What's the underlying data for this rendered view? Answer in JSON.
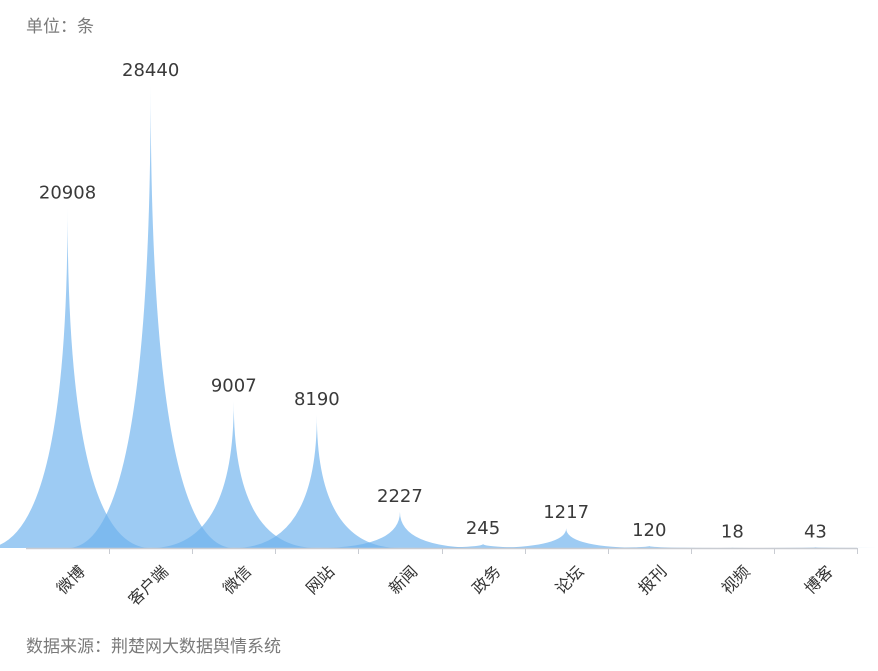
{
  "unit_label": "单位：条",
  "source_label": "数据来源：荆楚网大数据舆情系统",
  "colors": {
    "area": "#6fb3ee",
    "axis": "#c9ccd2",
    "text": "#333333"
  },
  "chart_data": {
    "type": "area",
    "categories": [
      "微博",
      "客户端",
      "微信",
      "网站",
      "新闻",
      "政务",
      "论坛",
      "报刊",
      "视频",
      "博客"
    ],
    "values": [
      20908,
      28440,
      9007,
      8190,
      2227,
      245,
      1217,
      120,
      18,
      43
    ],
    "title": "",
    "xlabel": "",
    "ylabel": "单位：条",
    "ylim": [
      0,
      28440
    ],
    "grid": false,
    "legend": "none"
  }
}
